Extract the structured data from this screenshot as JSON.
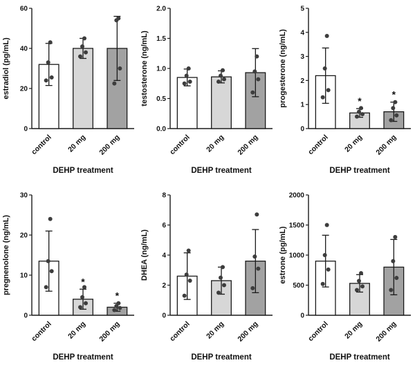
{
  "figure": {
    "xlabel": "DEHP treatment",
    "categories": [
      "control",
      "20 mg",
      "200 mg"
    ],
    "bar_colors": [
      "#ffffff",
      "#d7d7d7",
      "#a2a2a2"
    ],
    "bar_border_color": "#1a1a1a",
    "point_color": "#3d3d3d",
    "axis_color": "#1a1a1a",
    "significance_symbol": "*"
  },
  "chart_data": [
    {
      "type": "bar",
      "title": "",
      "ylabel": "estradiol (pg/mL)",
      "xlabel": "DEHP treatment",
      "categories": [
        "control",
        "20 mg",
        "200 mg"
      ],
      "ylim": [
        0,
        60
      ],
      "yticks": [
        "0",
        "20",
        "40",
        "60"
      ],
      "values": [
        32,
        40,
        40
      ],
      "errors": [
        10.5,
        5,
        16
      ],
      "points": [
        [
          24,
          25.5,
          33,
          43
        ],
        [
          36,
          38,
          41,
          45
        ],
        [
          22.5,
          30,
          54,
          55
        ]
      ],
      "sig": [
        "",
        "",
        ""
      ]
    },
    {
      "type": "bar",
      "title": "",
      "ylabel": "testosterone (ng/mL)",
      "xlabel": "DEHP treatment",
      "categories": [
        "control",
        "20 mg",
        "200 mg"
      ],
      "ylim": [
        0,
        2
      ],
      "yticks": [
        "0.0",
        "0.5",
        "1.0",
        "1.5",
        "2.0"
      ],
      "values": [
        0.85,
        0.86,
        0.93
      ],
      "errors": [
        0.14,
        0.1,
        0.4
      ],
      "points": [
        [
          0.75,
          0.78,
          0.88,
          1.0
        ],
        [
          0.78,
          0.82,
          0.88,
          0.97
        ],
        [
          0.6,
          0.82,
          0.95,
          1.2
        ]
      ],
      "sig": [
        "",
        "",
        ""
      ]
    },
    {
      "type": "bar",
      "title": "",
      "ylabel": "progesterone (ng/mL)",
      "xlabel": "DEHP treatment",
      "categories": [
        "control",
        "20 mg",
        "200 mg"
      ],
      "ylim": [
        0,
        5
      ],
      "yticks": [
        "0",
        "1",
        "2",
        "3",
        "4",
        "5"
      ],
      "values": [
        2.2,
        0.65,
        0.7
      ],
      "errors": [
        1.15,
        0.18,
        0.4
      ],
      "points": [
        [
          1.3,
          1.6,
          2.5,
          3.85
        ],
        [
          0.5,
          0.6,
          0.7,
          0.85
        ],
        [
          0.35,
          0.55,
          0.85,
          1.1
        ]
      ],
      "sig": [
        "",
        "*",
        "*"
      ]
    },
    {
      "type": "bar",
      "title": "",
      "ylabel": "pregnenolone (ng/mL)",
      "xlabel": "DEHP treatment",
      "categories": [
        "control",
        "20 mg",
        "200 mg"
      ],
      "ylim": [
        0,
        30
      ],
      "yticks": [
        "0",
        "10",
        "20",
        "30"
      ],
      "values": [
        13.5,
        4,
        2
      ],
      "errors": [
        7.5,
        2.5,
        1
      ],
      "points": [
        [
          7,
          11,
          13.5,
          24
        ],
        [
          2,
          3,
          4.5,
          7
        ],
        [
          1.3,
          1.8,
          2.3,
          3
        ]
      ],
      "sig": [
        "",
        "*",
        "*"
      ]
    },
    {
      "type": "bar",
      "title": "",
      "ylabel": "DHEA (ng/mL)",
      "xlabel": "DEHP treatment",
      "categories": [
        "control",
        "20 mg",
        "200 mg"
      ],
      "ylim": [
        0,
        8
      ],
      "yticks": [
        "0",
        "2",
        "4",
        "6",
        "8"
      ],
      "values": [
        2.6,
        2.3,
        3.6
      ],
      "errors": [
        1.55,
        0.9,
        2.1
      ],
      "points": [
        [
          1.3,
          2.3,
          2.7,
          4.3
        ],
        [
          1.5,
          2.0,
          2.5,
          3.2
        ],
        [
          1.8,
          3.1,
          3.9,
          6.7
        ]
      ],
      "sig": [
        "",
        "",
        ""
      ]
    },
    {
      "type": "bar",
      "title": "",
      "ylabel": "estrone (pg/mL)",
      "xlabel": "DEHP treatment",
      "categories": [
        "control",
        "20 mg",
        "200 mg"
      ],
      "ylim": [
        0,
        2000
      ],
      "yticks": [
        "0",
        "500",
        "1000",
        "1500",
        "2000"
      ],
      "values": [
        900,
        530,
        800
      ],
      "errors": [
        430,
        145,
        460
      ],
      "points": [
        [
          520,
          760,
          1000,
          1500
        ],
        [
          420,
          480,
          570,
          700
        ],
        [
          420,
          620,
          900,
          1300
        ]
      ],
      "sig": [
        "",
        "",
        ""
      ]
    }
  ]
}
